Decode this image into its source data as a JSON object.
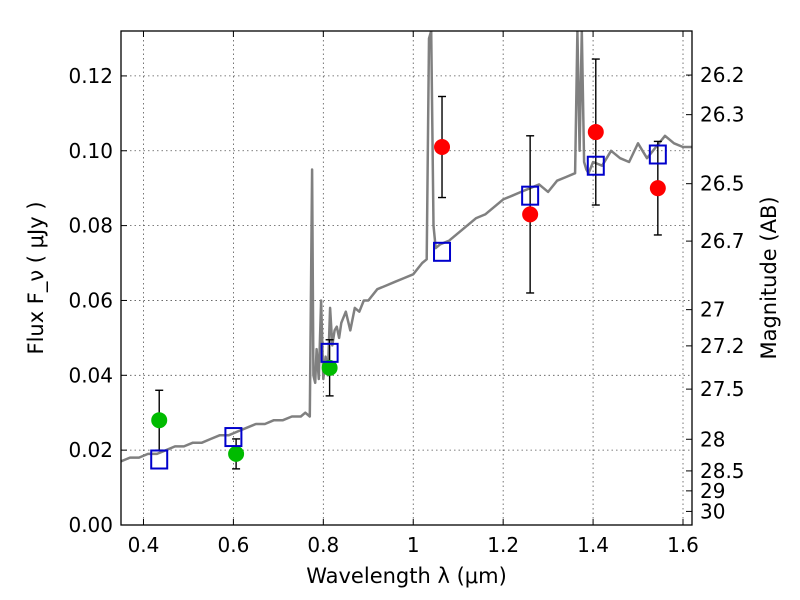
{
  "chart_data": {
    "type": "scatter",
    "xlabel": "Wavelength  λ (μm)",
    "ylabel": "Flux  F_ν  ( μJy )",
    "ylabel_right": "Magnitude (AB)",
    "xlim": [
      0.35,
      1.62
    ],
    "ylim": [
      0.0,
      0.132
    ],
    "x_ticks": [
      {
        "value": 0.4,
        "label": "0.4"
      },
      {
        "value": 0.6,
        "label": "0.6"
      },
      {
        "value": 0.8,
        "label": "0.8"
      },
      {
        "value": 1.0,
        "label": "1"
      },
      {
        "value": 1.2,
        "label": "1.2"
      },
      {
        "value": 1.4,
        "label": "1.4"
      },
      {
        "value": 1.6,
        "label": "1.6"
      }
    ],
    "y_ticks": [
      {
        "value": 0.0,
        "label": "0.00"
      },
      {
        "value": 0.02,
        "label": "0.02"
      },
      {
        "value": 0.04,
        "label": "0.04"
      },
      {
        "value": 0.06,
        "label": "0.06"
      },
      {
        "value": 0.08,
        "label": "0.08"
      },
      {
        "value": 0.1,
        "label": "0.10"
      },
      {
        "value": 0.12,
        "label": "0.12"
      }
    ],
    "right_ticks": [
      {
        "magnitude": 26.2,
        "label": "26.2"
      },
      {
        "magnitude": 26.3,
        "label": "26.3"
      },
      {
        "magnitude": 26.5,
        "label": "26.5"
      },
      {
        "magnitude": 26.7,
        "label": "26.7"
      },
      {
        "magnitude": 27.0,
        "label": "27"
      },
      {
        "magnitude": 27.2,
        "label": "27.2"
      },
      {
        "magnitude": 27.5,
        "label": "27.5"
      },
      {
        "magnitude": 28.0,
        "label": "28"
      },
      {
        "magnitude": 28.5,
        "label": "28.5"
      },
      {
        "magnitude": 29.0,
        "label": "29"
      },
      {
        "magnitude": 30.0,
        "label": "30"
      }
    ],
    "grid": true,
    "colors": {
      "spectrum": "#808080",
      "observed_optical": "#00bb00",
      "observed_nir": "#ff0000",
      "model": "#0000cc",
      "errorbar": "#000000"
    },
    "spectrum": {
      "x": [
        0.35,
        0.37,
        0.39,
        0.41,
        0.43,
        0.45,
        0.47,
        0.49,
        0.51,
        0.53,
        0.55,
        0.57,
        0.59,
        0.61,
        0.63,
        0.65,
        0.67,
        0.69,
        0.71,
        0.73,
        0.75,
        0.76,
        0.77,
        0.775,
        0.778,
        0.782,
        0.785,
        0.79,
        0.795,
        0.8,
        0.805,
        0.81,
        0.815,
        0.82,
        0.825,
        0.83,
        0.835,
        0.84,
        0.85,
        0.86,
        0.87,
        0.88,
        0.89,
        0.9,
        0.92,
        0.94,
        0.96,
        0.98,
        1.0,
        1.02,
        1.03,
        1.035,
        1.04,
        1.045,
        1.05,
        1.06,
        1.08,
        1.1,
        1.12,
        1.14,
        1.16,
        1.18,
        1.2,
        1.22,
        1.24,
        1.26,
        1.28,
        1.3,
        1.32,
        1.34,
        1.36,
        1.365,
        1.37,
        1.375,
        1.38,
        1.385,
        1.39,
        1.4,
        1.42,
        1.44,
        1.46,
        1.48,
        1.5,
        1.52,
        1.54,
        1.56,
        1.58,
        1.6,
        1.62
      ],
      "y": [
        0.017,
        0.018,
        0.018,
        0.019,
        0.019,
        0.02,
        0.021,
        0.021,
        0.022,
        0.022,
        0.023,
        0.024,
        0.024,
        0.025,
        0.026,
        0.027,
        0.027,
        0.028,
        0.028,
        0.029,
        0.029,
        0.03,
        0.029,
        0.095,
        0.04,
        0.038,
        0.047,
        0.039,
        0.06,
        0.039,
        0.045,
        0.04,
        0.058,
        0.048,
        0.052,
        0.053,
        0.05,
        0.054,
        0.057,
        0.052,
        0.058,
        0.057,
        0.06,
        0.06,
        0.063,
        0.064,
        0.065,
        0.066,
        0.067,
        0.07,
        0.071,
        0.13,
        0.132,
        0.08,
        0.074,
        0.075,
        0.076,
        0.078,
        0.08,
        0.082,
        0.083,
        0.085,
        0.087,
        0.088,
        0.089,
        0.09,
        0.091,
        0.089,
        0.092,
        0.093,
        0.094,
        0.132,
        0.1,
        0.132,
        0.097,
        0.095,
        0.094,
        0.097,
        0.096,
        0.1,
        0.098,
        0.097,
        0.102,
        0.098,
        0.101,
        0.104,
        0.102,
        0.101,
        0.101
      ]
    },
    "series": [
      {
        "marker": "circle",
        "color": "#00bb00",
        "points": [
          {
            "x": 0.435,
            "y": 0.028,
            "yerr": 0.008
          },
          {
            "x": 0.606,
            "y": 0.019,
            "yerr": 0.004
          },
          {
            "x": 0.814,
            "y": 0.042,
            "yerr": 0.0075
          }
        ]
      },
      {
        "marker": "circle",
        "color": "#ff0000",
        "points": [
          {
            "x": 1.064,
            "y": 0.101,
            "yerr": 0.0135
          },
          {
            "x": 1.26,
            "y": 0.083,
            "yerr": 0.021
          },
          {
            "x": 1.406,
            "y": 0.105,
            "yerr": 0.0195
          },
          {
            "x": 1.544,
            "y": 0.09,
            "yerr": 0.0125
          }
        ]
      },
      {
        "marker": "square-open",
        "color": "#0000cc",
        "points": [
          {
            "x": 0.435,
            "y": 0.0175
          },
          {
            "x": 0.6,
            "y": 0.0235
          },
          {
            "x": 0.814,
            "y": 0.046
          },
          {
            "x": 1.064,
            "y": 0.073
          },
          {
            "x": 1.26,
            "y": 0.088
          },
          {
            "x": 1.406,
            "y": 0.096
          },
          {
            "x": 1.544,
            "y": 0.099
          }
        ]
      }
    ]
  }
}
